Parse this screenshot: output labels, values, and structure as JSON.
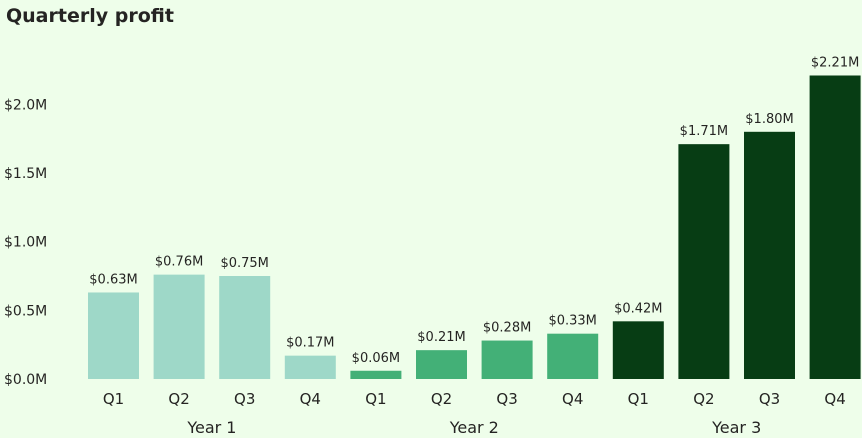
{
  "chart_data": {
    "type": "bar",
    "title": "Quarterly profit",
    "xlabel": "",
    "ylabel": "",
    "ylim": [
      0,
      2.25
    ],
    "yticks": [
      {
        "value": 0.0,
        "label": "$0.0M"
      },
      {
        "value": 0.5,
        "label": "$0.5M"
      },
      {
        "value": 1.0,
        "label": "$1.0M"
      },
      {
        "value": 1.5,
        "label": "$1.5M"
      },
      {
        "value": 2.0,
        "label": "$2.0M"
      }
    ],
    "grid": false,
    "legend": "none",
    "groups": [
      {
        "name": "Year 1",
        "color": "#9ed8c8",
        "bars": [
          {
            "category": "Q1",
            "value": 0.63,
            "label": "$0.63M"
          },
          {
            "category": "Q2",
            "value": 0.76,
            "label": "$0.76M"
          },
          {
            "category": "Q3",
            "value": 0.75,
            "label": "$0.75M"
          },
          {
            "category": "Q4",
            "value": 0.17,
            "label": "$0.17M"
          }
        ]
      },
      {
        "name": "Year 2",
        "color": "#43b077",
        "bars": [
          {
            "category": "Q1",
            "value": 0.06,
            "label": "$0.06M"
          },
          {
            "category": "Q2",
            "value": 0.21,
            "label": "$0.21M"
          },
          {
            "category": "Q3",
            "value": 0.28,
            "label": "$0.28M"
          },
          {
            "category": "Q4",
            "value": 0.33,
            "label": "$0.33M"
          }
        ]
      },
      {
        "name": "Year 3",
        "color": "#073d14",
        "bars": [
          {
            "category": "Q1",
            "value": 0.42,
            "label": "$0.42M"
          },
          {
            "category": "Q2",
            "value": 1.71,
            "label": "$1.71M"
          },
          {
            "category": "Q3",
            "value": 1.8,
            "label": "$1.80M"
          },
          {
            "category": "Q4",
            "value": 2.21,
            "label": "$2.21M"
          }
        ]
      }
    ]
  }
}
